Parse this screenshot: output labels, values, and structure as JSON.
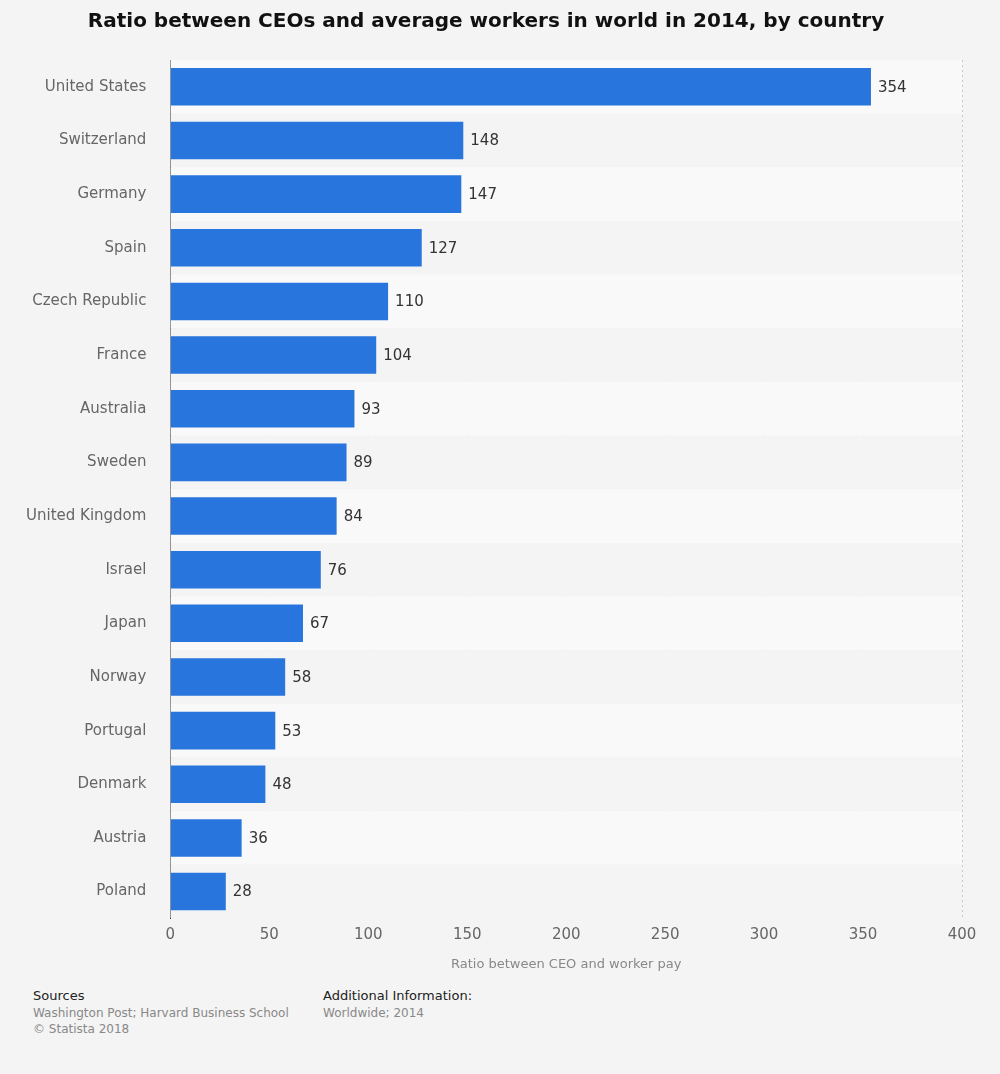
{
  "chart_data": {
    "type": "bar",
    "orientation": "horizontal",
    "title": "Ratio between CEOs and average workers in world in 2014, by country",
    "x_label": "Ratio between CEO and worker pay",
    "categories": [
      "United States",
      "Switzerland",
      "Germany",
      "Spain",
      "Czech Republic",
      "France",
      "Australia",
      "Sweden",
      "United Kingdom",
      "Israel",
      "Japan",
      "Norway",
      "Portugal",
      "Denmark",
      "Austria",
      "Poland"
    ],
    "values": [
      354,
      148,
      147,
      127,
      110,
      104,
      93,
      89,
      84,
      76,
      67,
      58,
      53,
      48,
      36,
      28
    ],
    "color": "#2876dd",
    "xlim": [
      0,
      400
    ],
    "xticks": [
      0,
      50,
      100,
      150,
      200,
      250,
      300,
      350,
      400
    ],
    "grid": true,
    "data_labels": true,
    "annotations": [
      {
        "heading": "Sources",
        "text": [
          "Washington Post; Harvard Business School",
          "© Statista 2018"
        ]
      },
      {
        "heading": "Additional Information:",
        "text": [
          "Worldwide; 2014"
        ]
      }
    ]
  }
}
